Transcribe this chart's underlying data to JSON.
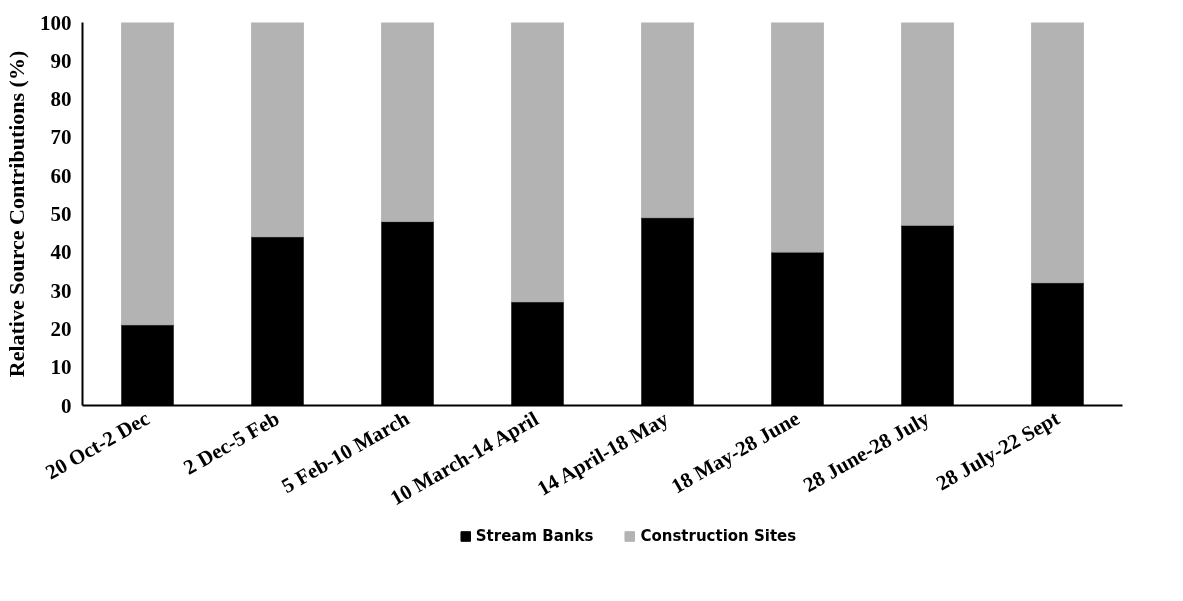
{
  "chart_data": {
    "type": "bar",
    "stacked": true,
    "ylabel": "Relative Source Contributions (%)",
    "categories": [
      "20 Oct-2 Dec",
      "2 Dec-5 Feb",
      "5 Feb-10 March",
      "10 March-14 April",
      "14 April-18 May",
      "18 May-28 June",
      "28 June-28 July",
      "28 July-22 Sept"
    ],
    "series": [
      {
        "name": "Stream Banks",
        "color": "#000000",
        "values": [
          21,
          44,
          48,
          27,
          49,
          40,
          47,
          32
        ]
      },
      {
        "name": "Construction Sites",
        "color": "#b3b3b3",
        "values": [
          79,
          56,
          52,
          73,
          51,
          60,
          53,
          68
        ]
      }
    ],
    "ylim": [
      0,
      100
    ],
    "yticks": [
      0,
      10,
      20,
      30,
      40,
      50,
      60,
      70,
      80,
      90,
      100
    ],
    "grid": false,
    "legend": "bottom"
  }
}
